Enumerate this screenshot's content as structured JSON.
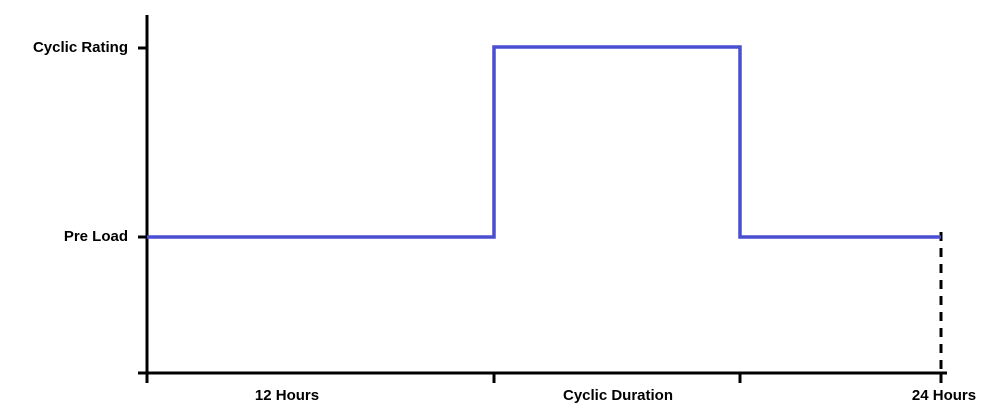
{
  "y_labels": [
    "Cyclic Rating",
    "Pre Load"
  ],
  "x_labels": [
    "12 Hours",
    "Cyclic Duration",
    "24 Hours"
  ]
}
